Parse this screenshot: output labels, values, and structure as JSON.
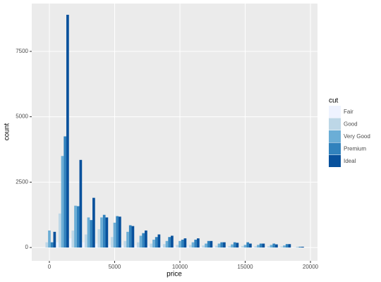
{
  "chart_data": {
    "type": "histogram",
    "x_label": "price",
    "y_label": "count",
    "legend_title": "cut",
    "bins": [
      -500,
      500,
      1500,
      2500,
      3500,
      4500,
      5500,
      6500,
      7500,
      8500,
      9500,
      10500,
      11500,
      12500,
      13500,
      14500,
      15500,
      16500,
      17500,
      18500,
      19500
    ],
    "series": [
      {
        "name": "Fair",
        "color": "#eff3ff",
        "values": [
          5,
          200,
          350,
          200,
          150,
          100,
          80,
          80,
          60,
          50,
          40,
          40,
          30,
          30,
          25,
          20,
          20,
          20,
          15,
          2
        ]
      },
      {
        "name": "Good",
        "color": "#bdd7e7",
        "values": [
          200,
          1300,
          650,
          500,
          700,
          400,
          250,
          200,
          150,
          130,
          100,
          100,
          80,
          70,
          60,
          60,
          50,
          50,
          40,
          5
        ]
      },
      {
        "name": "Very Good",
        "color": "#6baed6",
        "values": [
          650,
          3500,
          1600,
          1150,
          1150,
          950,
          600,
          450,
          300,
          250,
          250,
          200,
          150,
          150,
          120,
          100,
          100,
          100,
          80,
          15
        ]
      },
      {
        "name": "Premium",
        "color": "#3182bd",
        "values": [
          200,
          4250,
          1580,
          1050,
          1250,
          1200,
          850,
          550,
          400,
          400,
          300,
          300,
          250,
          200,
          200,
          200,
          150,
          150,
          130,
          30
        ]
      },
      {
        "name": "Ideal",
        "color": "#08519c",
        "values": [
          600,
          8900,
          3350,
          1900,
          1150,
          1180,
          820,
          650,
          500,
          450,
          350,
          350,
          250,
          200,
          180,
          150,
          150,
          120,
          130,
          30
        ]
      }
    ],
    "xlim": [
      -1350,
      20540
    ],
    "ylim": [
      -510,
      9330
    ],
    "xticks": [
      0,
      5000,
      10000,
      15000,
      20000
    ],
    "yticks": [
      0,
      2500,
      5000,
      7500
    ],
    "grid": true
  }
}
